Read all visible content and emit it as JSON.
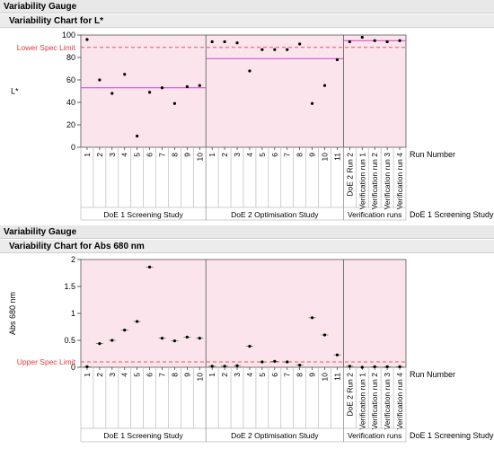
{
  "charts": [
    {
      "header": "Variability Gauge",
      "title": "Variability Chart for L*"
    },
    {
      "header": "Variability Gauge",
      "title": "Variability Chart for Abs 680 nm"
    }
  ],
  "colors": {
    "band": "#fce4ec",
    "spec_line": "#e05a5a",
    "spec_text": "#e0393e",
    "mean_line": "#cc44cc",
    "axis": "#555555",
    "header_bg": "#e8e8e8"
  },
  "chart_data": [
    {
      "type": "scatter",
      "title": "Variability Chart for L*",
      "ylabel": "L*",
      "ylim": [
        0,
        100
      ],
      "yticks": [
        0,
        20,
        40,
        60,
        80,
        100
      ],
      "x_level_label": "Run Number",
      "group_level_label": "DoE 1 Screening Study",
      "spec_limit": {
        "label": "Lower Spec Limit",
        "value": 89
      },
      "groups": [
        {
          "name": "DoE 1 Screening Study",
          "runs": [
            "1",
            "2",
            "3",
            "4",
            "5",
            "6",
            "7",
            "8",
            "9",
            "10"
          ],
          "values": [
            96,
            60,
            48,
            65,
            10,
            49,
            53,
            39,
            54,
            55
          ],
          "mean": 53
        },
        {
          "name": "DoE 2 Optimisation Study",
          "runs": [
            "1",
            "2",
            "3",
            "4",
            "5",
            "6",
            "7",
            "8",
            "9",
            "10",
            "11"
          ],
          "values": [
            94,
            94,
            93,
            68,
            87,
            87,
            87,
            92,
            39,
            55,
            78
          ],
          "mean": 79
        },
        {
          "name": "Verification runs",
          "runs": [
            "DoE 2 Run 2",
            "Verification run 1",
            "Verification run 2",
            "Verification run 3",
            "Verification run 4"
          ],
          "values": [
            94,
            98,
            95,
            94,
            95
          ],
          "mean": 95
        }
      ]
    },
    {
      "type": "scatter",
      "title": "Variability Chart for Abs 680 nm",
      "ylabel": "Abs 680 nm",
      "ylim": [
        0,
        2
      ],
      "yticks": [
        0,
        0.5,
        1,
        1.5,
        2
      ],
      "x_level_label": "Run Number",
      "group_level_label": "DoE 1 Screening Study",
      "spec_limit": {
        "label": "Upper Spec Limit",
        "value": 0.1
      },
      "groups": [
        {
          "name": "DoE 1 Screening Study",
          "runs": [
            "1",
            "2",
            "3",
            "4",
            "5",
            "6",
            "7",
            "8",
            "9",
            "10"
          ],
          "values": [
            0.01,
            0.44,
            0.5,
            0.69,
            0.85,
            1.86,
            0.54,
            0.49,
            0.56,
            0.54
          ]
        },
        {
          "name": "DoE 2 Optimisation Study",
          "runs": [
            "1",
            "2",
            "3",
            "4",
            "5",
            "6",
            "7",
            "8",
            "9",
            "10",
            "11"
          ],
          "values": [
            0.02,
            0.02,
            0.03,
            0.39,
            0.1,
            0.11,
            0.1,
            0.04,
            0.92,
            0.6,
            0.23
          ]
        },
        {
          "name": "Verification runs",
          "runs": [
            "DoE 2 Run 2",
            "Verification run 1",
            "Verification run 2",
            "Verification run 3",
            "Verification run 4"
          ],
          "values": [
            0.02,
            0.0,
            0.01,
            0.01,
            0.01
          ]
        }
      ]
    }
  ]
}
